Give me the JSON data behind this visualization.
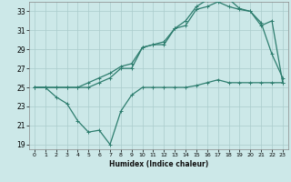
{
  "xlabel": "Humidex (Indice chaleur)",
  "bg_color": "#cce8e8",
  "grid_color": "#aacccc",
  "line_color": "#2d7d6e",
  "xlim": [
    -0.5,
    23.5
  ],
  "ylim": [
    18.5,
    34.0
  ],
  "xticks": [
    0,
    1,
    2,
    3,
    4,
    5,
    6,
    7,
    8,
    9,
    10,
    11,
    12,
    13,
    14,
    15,
    16,
    17,
    18,
    19,
    20,
    21,
    22,
    23
  ],
  "yticks": [
    19,
    21,
    23,
    25,
    27,
    29,
    31,
    33
  ],
  "line1_x": [
    0,
    1,
    2,
    3,
    4,
    5,
    6,
    7,
    8,
    9,
    10,
    11,
    12,
    13,
    14,
    15,
    16,
    17,
    18,
    19,
    20,
    21,
    22,
    23
  ],
  "line1_y": [
    25,
    25,
    24,
    23.3,
    21.5,
    20.3,
    20.5,
    19.0,
    22.5,
    24.2,
    25.0,
    25.0,
    25.0,
    25.0,
    25.0,
    25.2,
    25.5,
    25.8,
    25.5,
    25.5,
    25.5,
    25.5,
    25.5,
    25.5
  ],
  "line2_x": [
    0,
    1,
    2,
    3,
    4,
    5,
    6,
    7,
    8,
    9,
    10,
    11,
    12,
    13,
    14,
    15,
    16,
    17,
    18,
    19,
    20,
    21,
    22,
    23
  ],
  "line2_y": [
    25,
    25,
    25,
    25,
    25,
    25,
    25.5,
    26.0,
    27.0,
    27.0,
    29.2,
    29.5,
    29.5,
    31.2,
    31.5,
    33.2,
    33.5,
    34.0,
    33.5,
    33.2,
    33.0,
    31.5,
    32.0,
    25.5
  ],
  "line3_x": [
    0,
    1,
    2,
    3,
    4,
    5,
    6,
    7,
    8,
    9,
    10,
    11,
    12,
    13,
    14,
    15,
    16,
    17,
    18,
    19,
    20,
    21,
    22,
    23
  ],
  "line3_y": [
    25,
    25,
    25,
    25,
    25,
    25.5,
    26.0,
    26.5,
    27.2,
    27.5,
    29.2,
    29.5,
    29.8,
    31.2,
    32.0,
    33.5,
    34.2,
    34.5,
    34.3,
    33.3,
    33.0,
    31.8,
    28.5,
    26.0
  ]
}
